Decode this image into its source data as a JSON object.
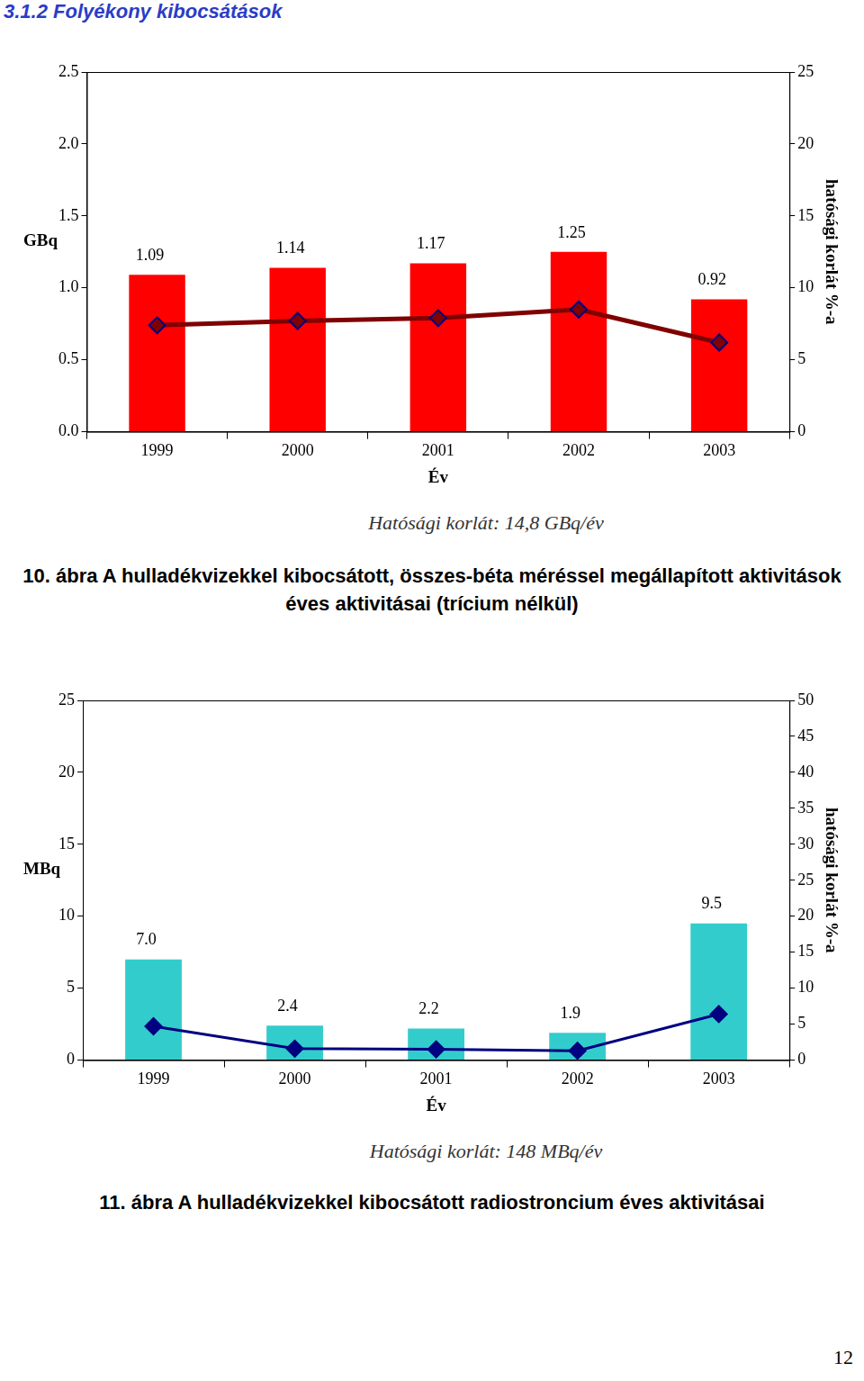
{
  "header": "3.1.2 Folyékony kibocsátások",
  "page_number": "12",
  "chart_data": [
    {
      "type": "bar",
      "y_label": "GBq",
      "y2_label": "hatósági korlát %-a",
      "x_label": "Év",
      "note": "Hatósági korlát: 14,8 GBq/év",
      "caption": "10. ábra A hulladékvizekkel kibocsátott, összes-béta méréssel megállapított aktivitások éves aktivitásai (trícium nélkül)",
      "categories": [
        "1999",
        "2000",
        "2001",
        "2002",
        "2003"
      ],
      "series": [
        {
          "type": "bar",
          "color": "#ff0000",
          "values": [
            1.09,
            1.14,
            1.17,
            1.25,
            0.92
          ]
        },
        {
          "type": "line",
          "axis": "y2",
          "color": "#800000",
          "marker": "diamond",
          "values": [
            7.4,
            7.7,
            7.9,
            8.5,
            6.2
          ]
        }
      ],
      "ylim": [
        0,
        2.5
      ],
      "yticks": [
        {
          "value": 0,
          "label": "0.0"
        },
        {
          "value": 0.5,
          "label": "0.5"
        },
        {
          "value": 1,
          "label": "1.0"
        },
        {
          "value": 1.5,
          "label": "1.5"
        },
        {
          "value": 2,
          "label": "2.0"
        },
        {
          "value": 2.5,
          "label": "2.5"
        }
      ],
      "y2lim": [
        0,
        25
      ],
      "y2ticks": [
        0,
        5,
        10,
        15,
        20,
        25
      ],
      "grid": false,
      "data_labels": true
    },
    {
      "type": "bar",
      "y_label": "MBq",
      "y2_label": "hatósági korlát %-a",
      "x_label": "Év",
      "note": "Hatósági korlát: 148 MBq/év",
      "caption": "11. ábra A hulladékvizekkel kibocsátott radiostroncium éves aktivitásai",
      "categories": [
        "1999",
        "2000",
        "2001",
        "2002",
        "2003"
      ],
      "series": [
        {
          "type": "bar",
          "color": "#33cccc",
          "values": [
            7.0,
            2.4,
            2.2,
            1.9,
            9.5
          ],
          "value_labels": [
            "7.0",
            "2.4",
            "2.2",
            "1.9",
            "9.5"
          ]
        },
        {
          "type": "line",
          "axis": "y2",
          "color": "#000080",
          "marker": "diamond",
          "values": [
            4.7,
            1.6,
            1.5,
            1.3,
            6.4
          ]
        }
      ],
      "ylim": [
        0,
        25
      ],
      "yticks": [
        0,
        5,
        10,
        15,
        20,
        25
      ],
      "y2lim": [
        0,
        50
      ],
      "y2ticks": [
        0,
        5,
        10,
        15,
        20,
        25,
        30,
        35,
        40,
        45,
        50
      ],
      "grid": false,
      "data_labels": true
    }
  ]
}
